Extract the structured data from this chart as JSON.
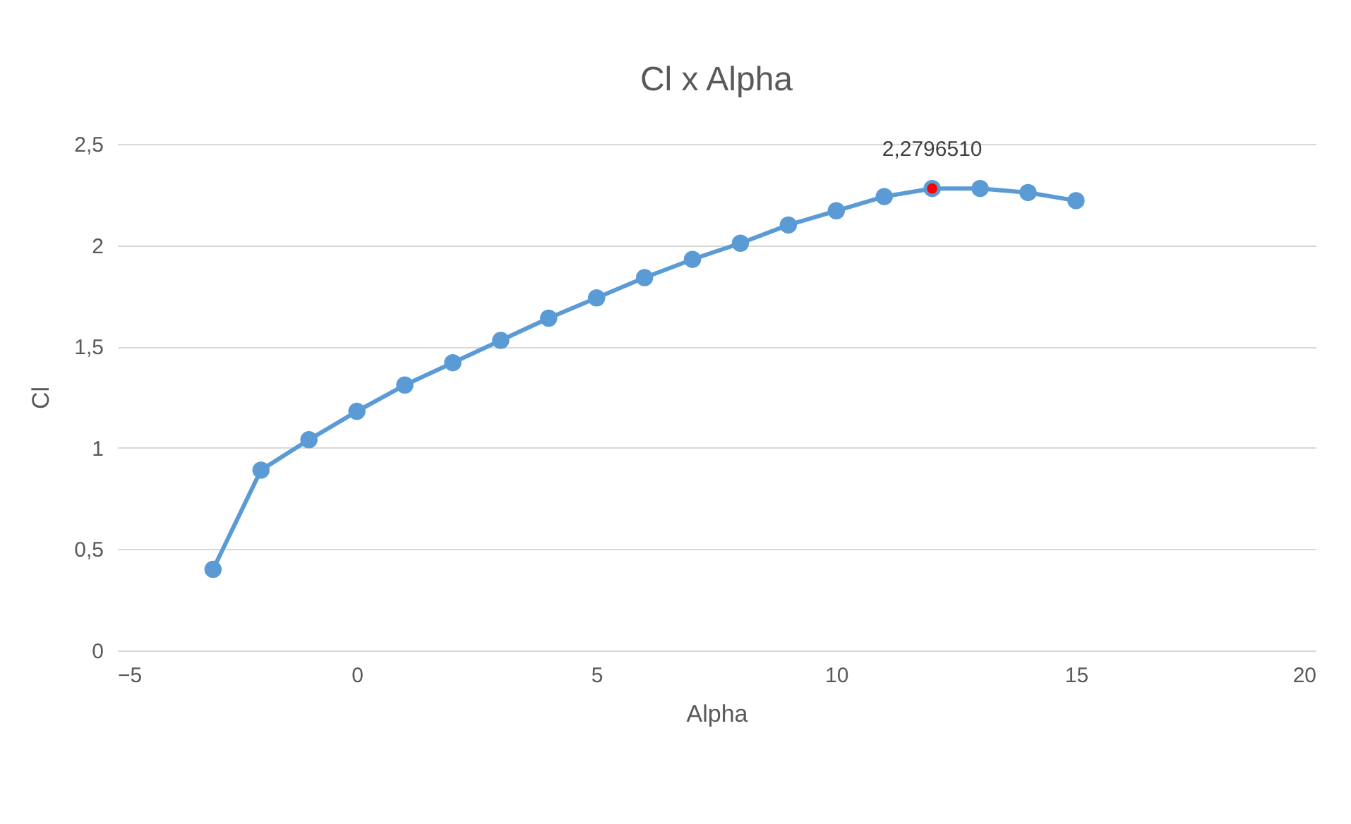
{
  "chart_data": {
    "type": "line",
    "title": "Cl x Alpha",
    "xlabel": "Alpha",
    "ylabel": "Cl",
    "x": [
      -3,
      -2,
      -1,
      0,
      1,
      2,
      3,
      4,
      5,
      6,
      7,
      8,
      9,
      10,
      11,
      12,
      13,
      14,
      15
    ],
    "series": [
      {
        "color": "#5b9bd5",
        "values": [
          0.4,
          0.89,
          1.04,
          1.18,
          1.31,
          1.42,
          1.53,
          1.64,
          1.74,
          1.84,
          1.93,
          2.01,
          2.1,
          2.17,
          2.24,
          2.28,
          2.28,
          2.26,
          2.22
        ]
      },
      {
        "type": "scatter",
        "color": "#ff0000",
        "x": [
          12
        ],
        "values": [
          2.28
        ]
      }
    ],
    "annotations": [
      {
        "text": "2,2796510",
        "x": 12,
        "y": 2.279651
      }
    ],
    "xlim": [
      -5,
      20
    ],
    "xticks": [
      -5,
      0,
      5,
      10,
      15,
      20
    ],
    "ylim": [
      0,
      2.5
    ],
    "yticks": [
      0,
      {
        "value": 0.5,
        "label": "0,5"
      },
      1,
      {
        "value": 1.5,
        "label": "1,5"
      },
      2,
      {
        "value": 2.5,
        "label": "2,5"
      }
    ],
    "grid": "y",
    "marker": "circle",
    "line_style": "solid"
  }
}
